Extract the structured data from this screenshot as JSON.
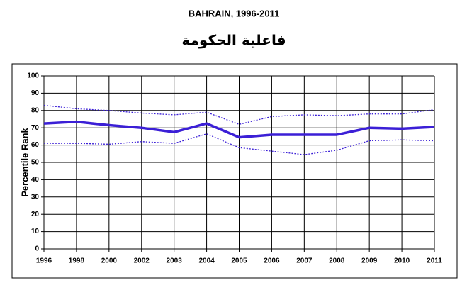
{
  "chart_data": {
    "type": "line",
    "title": "BAHRAIN, 1996-2011",
    "subtitle": "فاعلية الحكومة",
    "ylabel": "Percentile Rank",
    "categories": [
      "1996",
      "1998",
      "2000",
      "2002",
      "2003",
      "2004",
      "2005",
      "2006",
      "2007",
      "2008",
      "2009",
      "2010",
      "2011"
    ],
    "series": [
      {
        "color": "#3b1fd6",
        "style": "dotted",
        "values": [
          83,
          81,
          80,
          78.5,
          77.5,
          79,
          72,
          76.5,
          77.5,
          77,
          78,
          78,
          80.5
        ]
      },
      {
        "color": "#3b1fd6",
        "style": "solid",
        "values": [
          72.5,
          73.5,
          71.5,
          70,
          67.5,
          72.5,
          64.5,
          66,
          66,
          66,
          70,
          69.5,
          70.5
        ]
      },
      {
        "color": "#3b1fd6",
        "style": "dotted",
        "values": [
          61,
          61,
          60.5,
          62,
          61,
          66.5,
          58.5,
          56.5,
          54.5,
          57,
          62.5,
          63,
          62.5
        ]
      }
    ],
    "ylim": [
      0,
      100
    ],
    "yticks": [
      0,
      10,
      20,
      30,
      40,
      50,
      60,
      70,
      80,
      90,
      100
    ],
    "grid": true
  }
}
